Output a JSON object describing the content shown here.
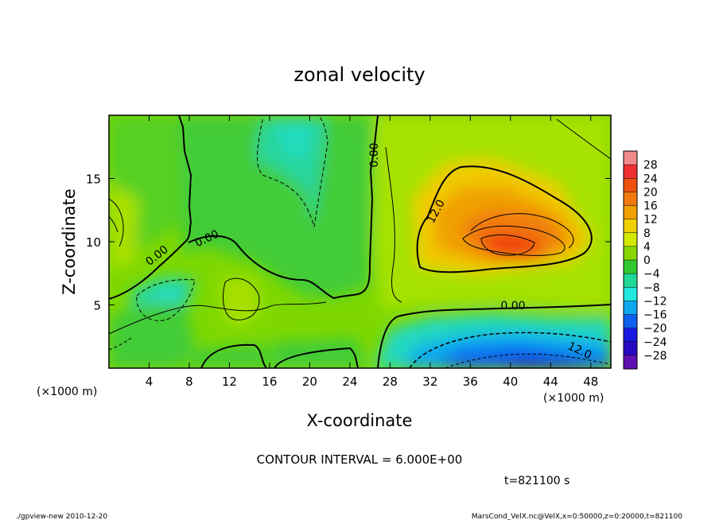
{
  "chart_data": {
    "type": "heatmap",
    "title": "zonal velocity",
    "xlabel": "X-coordinate",
    "ylabel": "Z-coordinate",
    "x_unit_left": "(×1000 m)",
    "x_unit_right": "(×1000 m)",
    "xlim": [
      0,
      50
    ],
    "ylim": [
      0,
      20
    ],
    "x_ticks": [
      4,
      8,
      12,
      16,
      20,
      24,
      28,
      32,
      36,
      40,
      44,
      48
    ],
    "y_ticks": [
      5,
      10,
      15
    ],
    "colorbar_levels": [
      28,
      24,
      20,
      16,
      12,
      8,
      4,
      0,
      -4,
      -8,
      -12,
      -16,
      -20,
      -24,
      -28
    ],
    "colorbar_colors": [
      "#f08a8a",
      "#f03030",
      "#f05010",
      "#f07a10",
      "#f0a000",
      "#f0d000",
      "#d2e800",
      "#88d800",
      "#30c830",
      "#20d898",
      "#20e8e0",
      "#10a8f0",
      "#1060f0",
      "#1818e0",
      "#2808c0",
      "#6010b0"
    ],
    "contour_labels": [
      "0.00",
      "0.00",
      "0.00",
      "0.00",
      "0.00",
      "12.0",
      "12.0"
    ],
    "features": [
      {
        "x": 41,
        "z": 9.8,
        "value": 24
      },
      {
        "x": 40,
        "z": 1.0,
        "value": -22
      },
      {
        "x": 19,
        "z": 18.0,
        "value": -7
      },
      {
        "x": 5,
        "z": 5.5,
        "value": -5
      },
      {
        "x": 12,
        "z": 5.5,
        "value": 7
      },
      {
        "x": 0.5,
        "z": 11.0,
        "value": 10
      }
    ],
    "grid": false
  },
  "contour_interval": "CONTOUR INTERVAL = 6.000E+00",
  "time_label": "t=821100 s",
  "footer_left": "./gpview-new  2010-12-20",
  "footer_right": "MarsCond_VelX.nc@VelX,x=0:50000,z=0:20000,t=821100"
}
